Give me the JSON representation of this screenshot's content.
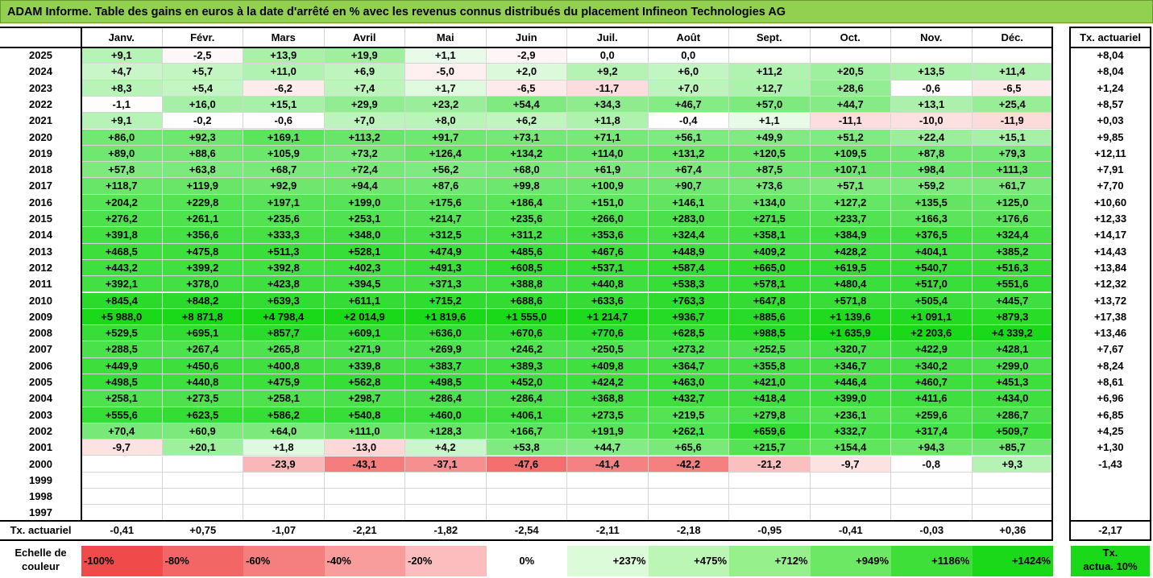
{
  "title": "ADAM Informe. Table des gains en euros à la date d'arrêté en % avec les revenus connus distribués du placement Infineon Technologies AG",
  "row_label_total": "Tx. actuariel",
  "annual_col_header": "Tx. actuariel",
  "legend_label_line1": "Echelle de",
  "legend_label_line2": "couleur",
  "legend_items": [
    "-100%",
    "-80%",
    "-60%",
    "-40%",
    "-20%",
    "0%",
    "+237%",
    "+475%",
    "+712%",
    "+949%",
    "+1186%",
    "+1424%"
  ],
  "legend_colors": [
    "#f14a4a",
    "#f36666",
    "#f57f7f",
    "#f89c9c",
    "#fbbdbd",
    "#ffffff",
    "#dcfbd8",
    "#bbf6b5",
    "#96f08c",
    "#6de864",
    "#3fdf3a",
    "#19d919"
  ],
  "legend_annual_line1": "Tx.",
  "legend_annual_line2": "actua. 10%",
  "legend_annual_color": "#19d919",
  "chart_data": {
    "type": "heatmap",
    "months": [
      "Janv.",
      "Févr.",
      "Mars",
      "Avril",
      "Mai",
      "Juin",
      "Juil.",
      "Août",
      "Sept.",
      "Oct.",
      "Nov.",
      "Déc."
    ],
    "years": [
      "2025",
      "2024",
      "2023",
      "2022",
      "2021",
      "2020",
      "2019",
      "2018",
      "2017",
      "2016",
      "2015",
      "2014",
      "2013",
      "2012",
      "2011",
      "2010",
      "2009",
      "2008",
      "2007",
      "2006",
      "2005",
      "2004",
      "2003",
      "2002",
      "2001",
      "2000",
      "1999",
      "1998",
      "1997"
    ],
    "values": [
      [
        "+9,1",
        "-2,5",
        "+13,9",
        "+19,9",
        "+1,1",
        "-2,9",
        "0,0",
        "0,0",
        "",
        "",
        "",
        ""
      ],
      [
        "+4,7",
        "+5,7",
        "+11,0",
        "+6,9",
        "-5,0",
        "+2,0",
        "+9,2",
        "+6,0",
        "+11,2",
        "+20,5",
        "+13,5",
        "+11,4"
      ],
      [
        "+8,3",
        "+5,4",
        "-6,2",
        "+7,4",
        "+1,7",
        "-6,5",
        "-11,7",
        "+7,0",
        "+12,7",
        "+28,6",
        "-0,6",
        "-6,5"
      ],
      [
        "-1,1",
        "+16,0",
        "+15,1",
        "+29,9",
        "+23,2",
        "+54,4",
        "+34,3",
        "+46,7",
        "+57,0",
        "+44,7",
        "+13,1",
        "+25,4"
      ],
      [
        "+9,1",
        "-0,2",
        "-0,6",
        "+7,0",
        "+8,0",
        "+6,2",
        "+11,8",
        "-0,4",
        "+1,1",
        "-11,1",
        "-10,0",
        "-11,9"
      ],
      [
        "+86,0",
        "+92,3",
        "+169,1",
        "+113,2",
        "+91,7",
        "+73,1",
        "+71,1",
        "+56,1",
        "+49,9",
        "+51,2",
        "+22,4",
        "+15,1"
      ],
      [
        "+89,0",
        "+88,6",
        "+105,9",
        "+73,2",
        "+126,4",
        "+134,2",
        "+114,0",
        "+131,2",
        "+120,5",
        "+109,5",
        "+87,8",
        "+79,3"
      ],
      [
        "+57,8",
        "+63,8",
        "+68,7",
        "+72,4",
        "+56,2",
        "+68,0",
        "+61,9",
        "+67,4",
        "+87,5",
        "+107,1",
        "+98,4",
        "+111,3"
      ],
      [
        "+118,7",
        "+119,9",
        "+92,9",
        "+94,4",
        "+87,6",
        "+99,8",
        "+100,9",
        "+90,7",
        "+73,6",
        "+57,1",
        "+59,2",
        "+61,7"
      ],
      [
        "+204,2",
        "+229,8",
        "+197,1",
        "+199,0",
        "+175,6",
        "+186,4",
        "+151,0",
        "+146,1",
        "+134,0",
        "+127,2",
        "+135,5",
        "+125,0"
      ],
      [
        "+276,2",
        "+261,1",
        "+235,6",
        "+253,1",
        "+214,7",
        "+235,6",
        "+266,0",
        "+283,0",
        "+271,5",
        "+233,7",
        "+166,3",
        "+176,6"
      ],
      [
        "+391,8",
        "+356,6",
        "+333,3",
        "+348,0",
        "+312,5",
        "+311,2",
        "+353,6",
        "+324,4",
        "+358,1",
        "+384,9",
        "+376,5",
        "+324,4"
      ],
      [
        "+468,5",
        "+475,8",
        "+511,3",
        "+528,1",
        "+474,9",
        "+485,6",
        "+467,6",
        "+448,9",
        "+409,2",
        "+428,2",
        "+404,1",
        "+385,2"
      ],
      [
        "+443,2",
        "+399,2",
        "+392,8",
        "+402,3",
        "+491,3",
        "+608,5",
        "+537,1",
        "+587,4",
        "+665,0",
        "+619,5",
        "+540,7",
        "+516,3"
      ],
      [
        "+392,1",
        "+378,0",
        "+423,8",
        "+394,5",
        "+371,3",
        "+388,8",
        "+440,8",
        "+538,3",
        "+578,1",
        "+480,4",
        "+517,0",
        "+551,6"
      ],
      [
        "+845,4",
        "+848,2",
        "+639,3",
        "+611,1",
        "+715,2",
        "+688,6",
        "+633,6",
        "+763,3",
        "+647,8",
        "+571,8",
        "+505,4",
        "+445,7"
      ],
      [
        "+5 988,0",
        "+8 871,8",
        "+4 798,4",
        "+2 014,9",
        "+1 819,6",
        "+1 555,0",
        "+1 214,7",
        "+936,7",
        "+885,6",
        "+1 139,6",
        "+1 091,1",
        "+879,3"
      ],
      [
        "+529,5",
        "+695,1",
        "+857,7",
        "+609,1",
        "+636,0",
        "+670,6",
        "+770,6",
        "+628,5",
        "+988,5",
        "+1 635,9",
        "+2 203,6",
        "+4 339,2"
      ],
      [
        "+288,5",
        "+267,4",
        "+265,8",
        "+271,9",
        "+269,9",
        "+246,2",
        "+250,5",
        "+273,2",
        "+252,5",
        "+320,7",
        "+422,9",
        "+428,1"
      ],
      [
        "+449,9",
        "+450,6",
        "+400,8",
        "+339,8",
        "+383,7",
        "+389,3",
        "+409,8",
        "+364,7",
        "+355,8",
        "+346,7",
        "+340,2",
        "+299,0"
      ],
      [
        "+498,5",
        "+440,8",
        "+475,9",
        "+562,8",
        "+498,5",
        "+452,0",
        "+424,2",
        "+463,0",
        "+421,0",
        "+446,4",
        "+460,7",
        "+451,3"
      ],
      [
        "+258,1",
        "+273,5",
        "+258,1",
        "+298,7",
        "+286,4",
        "+286,4",
        "+368,8",
        "+432,7",
        "+418,4",
        "+399,0",
        "+411,6",
        "+434,0"
      ],
      [
        "+555,6",
        "+623,5",
        "+586,2",
        "+540,8",
        "+460,0",
        "+406,1",
        "+273,5",
        "+219,5",
        "+279,8",
        "+236,1",
        "+259,6",
        "+286,7"
      ],
      [
        "+70,4",
        "+60,9",
        "+64,0",
        "+111,0",
        "+128,3",
        "+166,7",
        "+191,9",
        "+262,1",
        "+659,6",
        "+332,7",
        "+317,4",
        "+509,7"
      ],
      [
        "-9,7",
        "+20,1",
        "+1,8",
        "-13,0",
        "+4,2",
        "+53,8",
        "+44,7",
        "+65,6",
        "+215,7",
        "+154,4",
        "+94,3",
        "+85,7"
      ],
      [
        "",
        "",
        "-23,9",
        "-43,1",
        "-37,1",
        "-47,6",
        "-41,4",
        "-42,2",
        "-21,2",
        "-9,7",
        "-0,8",
        "+9,3"
      ],
      [
        "",
        "",
        "",
        "",
        "",
        "",
        "",
        "",
        "",
        "",
        "",
        ""
      ],
      [
        "",
        "",
        "",
        "",
        "",
        "",
        "",
        "",
        "",
        "",
        "",
        ""
      ],
      [
        "",
        "",
        "",
        "",
        "",
        "",
        "",
        "",
        "",
        "",
        "",
        ""
      ]
    ],
    "annual_rate": [
      "+8,04",
      "+8,04",
      "+1,24",
      "+8,57",
      "+0,03",
      "+9,85",
      "+12,11",
      "+7,91",
      "+7,70",
      "+10,60",
      "+12,33",
      "+14,17",
      "+14,43",
      "+13,84",
      "+12,32",
      "+13,72",
      "+17,38",
      "+13,46",
      "+7,67",
      "+8,24",
      "+8,61",
      "+6,96",
      "+6,85",
      "+4,25",
      "+1,30",
      "-1,43",
      "",
      "",
      ""
    ],
    "monthly_rate": [
      "-0,41",
      "+0,75",
      "-1,07",
      "-2,21",
      "-1,82",
      "-2,54",
      "-2,11",
      "-2,18",
      "-0,95",
      "-0,41",
      "-0,03",
      "+0,36"
    ],
    "overall_rate": "-2,17"
  }
}
